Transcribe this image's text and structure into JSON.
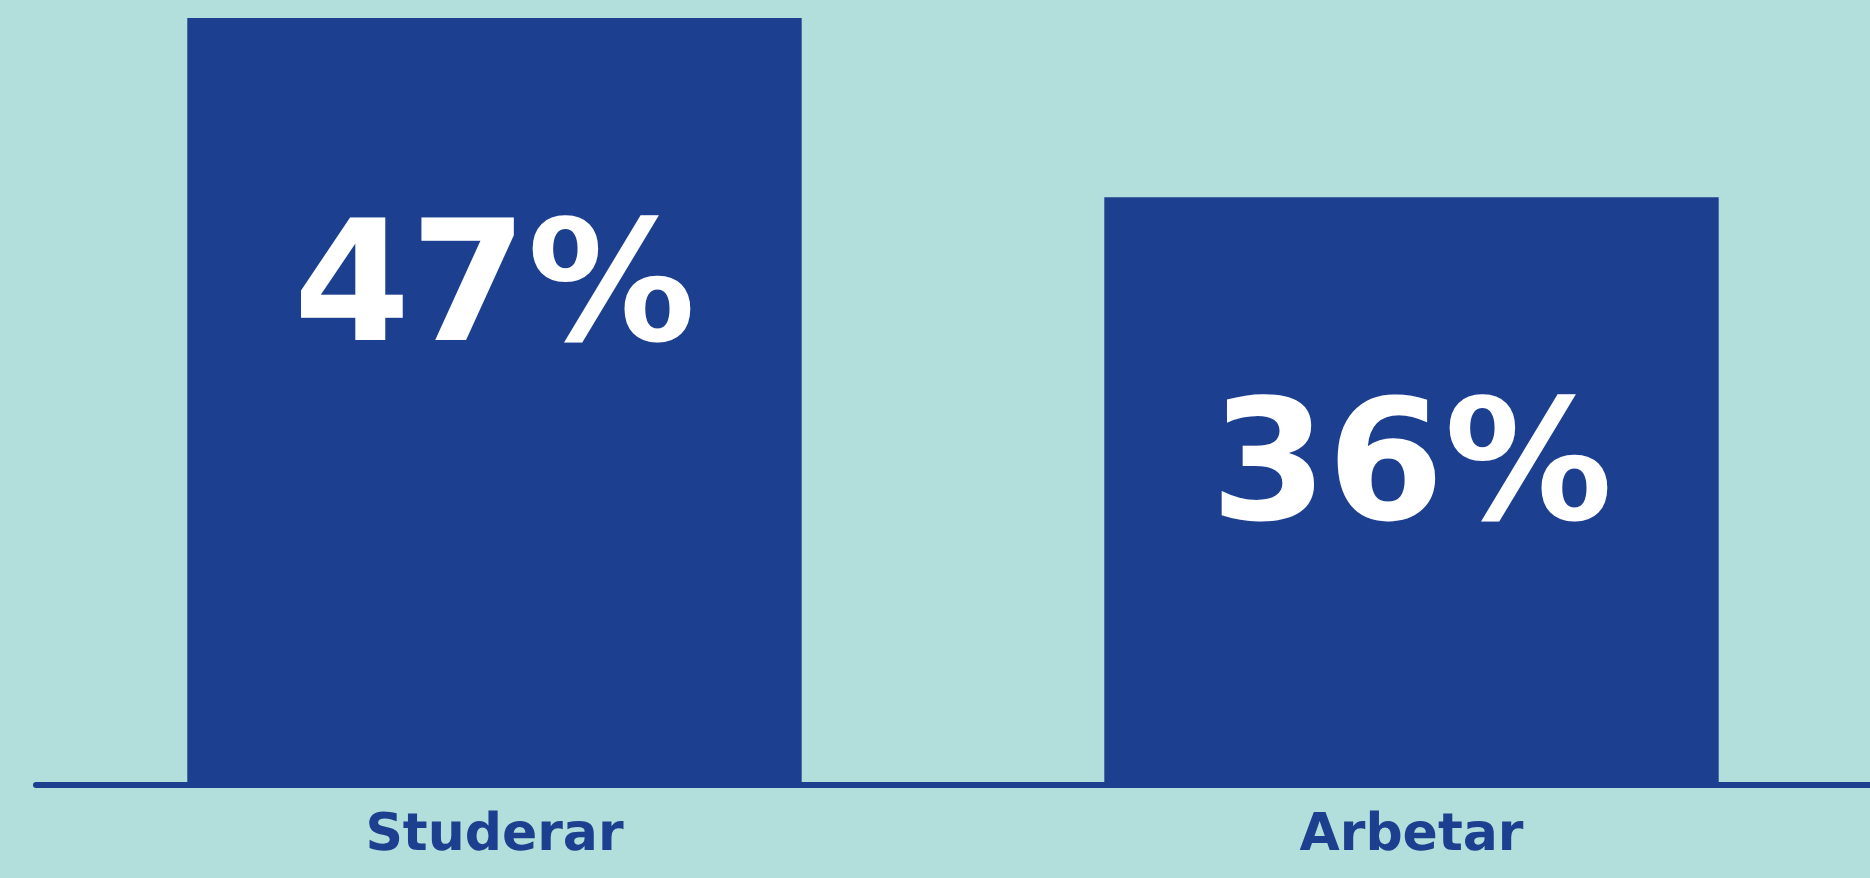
{
  "chart_data": {
    "type": "bar",
    "categories": [
      "Studerar",
      "Arbetar"
    ],
    "values": [
      47,
      36
    ],
    "value_labels": [
      "47%",
      "36%"
    ],
    "color": "#1c3f8f"
  }
}
